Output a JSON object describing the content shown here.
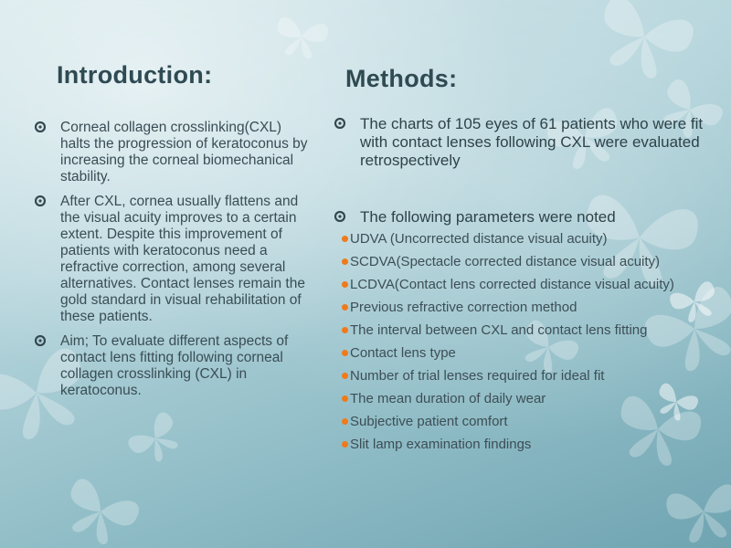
{
  "slide": {
    "introduction": {
      "title": "Introduction:",
      "bullets": [
        "Corneal collagen crosslinking(CXL) halts the progression of keratoconus by increasing the corneal biomechanical stability.",
        "After CXL, cornea usually flattens and the visual acuity improves to a certain extent. Despite this improvement of patients with keratoconus need a refractive correction, among several alternatives. Contact lenses remain the gold standard in visual rehabilitation of these patients.",
        " Aim; To evaluate different aspects of contact lens fitting following corneal collagen crosslinking (CXL) in keratoconus."
      ]
    },
    "methods": {
      "title": "Methods:",
      "bullet_1": "The charts of 105 eyes of 61 patients who were fit with contact lenses following CXL were evaluated retrospectively",
      "bullet_2": "The following parameters were noted",
      "parameters": [
        "UDVA (Uncorrected distance visual acuity)",
        "SCDVA(Spectacle corrected distance visual acuity)",
        "LCDVA(Contact lens corrected distance visual acuity)",
        "Previous refractive correction method",
        "The interval between CXL and contact lens fitting",
        "Contact lens type",
        "Number of trial lenses required for ideal fit",
        "The mean duration of  daily wear",
        "Subjective patient comfort",
        "Slit lamp examination findings"
      ]
    },
    "colors": {
      "title": "#2f4a52",
      "sub_bullet": "#f07a1a",
      "background_top": "#d3e6ea",
      "background_bottom": "#6fa4b1"
    },
    "icons": {
      "main_bullet": "gear-bullet-icon",
      "sub_bullet": "orange-dot",
      "background": "butterfly-icon"
    }
  }
}
